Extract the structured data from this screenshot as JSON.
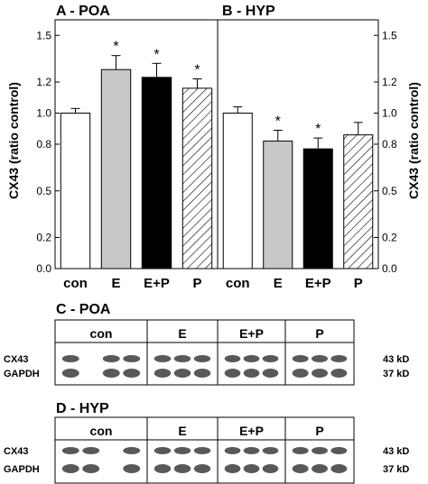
{
  "chart_data": [
    {
      "type": "bar",
      "title": "A - POA",
      "ylabel": "CX43 (ratio control)",
      "categories": [
        "con",
        "E",
        "E+P",
        "P"
      ],
      "values": [
        1.0,
        1.28,
        1.23,
        1.16
      ],
      "errors": [
        0.03,
        0.09,
        0.09,
        0.06
      ],
      "significance": [
        "",
        "*",
        "*",
        "*"
      ],
      "bar_fills": [
        "white",
        "light-gray",
        "black",
        "hatched"
      ],
      "ylim": [
        0.0,
        1.6
      ],
      "yticks": [
        "0.0",
        "0.2",
        "0.5",
        "0.8",
        "1.0",
        "1.2",
        "1.5"
      ],
      "ytick_values": [
        0.0,
        0.2,
        0.5,
        0.8,
        1.0,
        1.2,
        1.5
      ]
    },
    {
      "type": "bar",
      "title": "B - HYP",
      "ylabel": "CX43 (ratio control)",
      "categories": [
        "con",
        "E",
        "E+P",
        "P"
      ],
      "values": [
        1.0,
        0.82,
        0.77,
        0.86
      ],
      "errors": [
        0.04,
        0.07,
        0.07,
        0.08
      ],
      "significance": [
        "",
        "*",
        "*",
        ""
      ],
      "bar_fills": [
        "white",
        "light-gray",
        "black",
        "hatched"
      ],
      "ylim": [
        0.0,
        1.6
      ],
      "yticks": [
        "0.0",
        "0.2",
        "0.5",
        "0.8",
        "1.0",
        "1.2",
        "1.5"
      ],
      "ytick_values": [
        0.0,
        0.2,
        0.5,
        0.8,
        1.0,
        1.2,
        1.5
      ]
    }
  ],
  "colors": {
    "light_gray": "#c8c8c8",
    "black": "#000000",
    "white": "#ffffff",
    "blot": "#3c3c3c"
  },
  "blots": [
    {
      "title": "C - POA",
      "groups": [
        "con",
        "E",
        "E+P",
        "P"
      ],
      "rows": [
        "CX43",
        "GAPDH"
      ],
      "sizes": [
        "43 kD",
        "37 kD"
      ]
    },
    {
      "title": "D - HYP",
      "groups": [
        "con",
        "E",
        "E+P",
        "P"
      ],
      "rows": [
        "CX43",
        "GAPDH"
      ],
      "sizes": [
        "43 kD",
        "37 kD"
      ]
    }
  ]
}
